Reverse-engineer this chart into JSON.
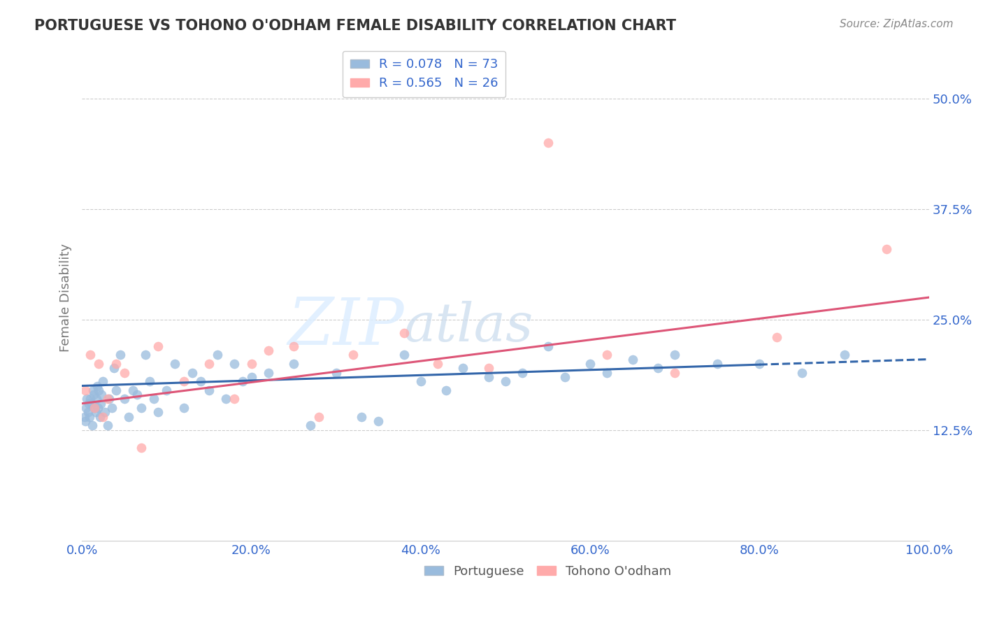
{
  "title": "PORTUGUESE VS TOHONO O'ODHAM FEMALE DISABILITY CORRELATION CHART",
  "source": "Source: ZipAtlas.com",
  "ylabel": "Female Disability",
  "xlabel": "",
  "xlim": [
    0,
    100
  ],
  "ylim": [
    0,
    55
  ],
  "yticks": [
    12.5,
    25.0,
    37.5,
    50.0
  ],
  "xticks": [
    0,
    20,
    40,
    60,
    80,
    100
  ],
  "xtick_labels": [
    "0.0%",
    "20.0%",
    "40.0%",
    "60.0%",
    "80.0%",
    "100.0%"
  ],
  "ytick_labels": [
    "12.5%",
    "25.0%",
    "37.5%",
    "50.0%"
  ],
  "portuguese_R": 0.078,
  "portuguese_N": 73,
  "tohono_R": 0.565,
  "tohono_N": 26,
  "blue_scatter_color": "#99BBDD",
  "pink_scatter_color": "#FFAAAA",
  "blue_line_color": "#3366AA",
  "pink_line_color": "#DD5577",
  "legend_color": "#3366CC",
  "background_color": "#FFFFFF",
  "grid_color": "#CCCCCC",
  "watermark_color": "#DDDDDD",
  "title_color": "#333333",
  "portuguese_x": [
    0.3,
    0.4,
    0.5,
    0.6,
    0.7,
    0.8,
    0.9,
    1.0,
    1.1,
    1.2,
    1.3,
    1.4,
    1.5,
    1.6,
    1.7,
    1.8,
    1.9,
    2.0,
    2.1,
    2.2,
    2.3,
    2.5,
    2.7,
    3.0,
    3.2,
    3.5,
    3.8,
    4.0,
    4.5,
    5.0,
    5.5,
    6.0,
    6.5,
    7.0,
    7.5,
    8.0,
    8.5,
    9.0,
    10.0,
    11.0,
    12.0,
    13.0,
    14.0,
    15.0,
    16.0,
    17.0,
    18.0,
    19.0,
    20.0,
    22.0,
    25.0,
    27.0,
    30.0,
    33.0,
    35.0,
    38.0,
    40.0,
    43.0,
    45.0,
    48.0,
    50.0,
    52.0,
    55.0,
    57.0,
    60.0,
    62.0,
    65.0,
    68.0,
    70.0,
    75.0,
    80.0,
    85.0,
    90.0
  ],
  "portuguese_y": [
    14.0,
    13.5,
    15.0,
    16.0,
    14.5,
    15.5,
    14.0,
    16.0,
    15.5,
    13.0,
    17.0,
    16.5,
    15.0,
    14.5,
    16.0,
    17.5,
    15.0,
    17.0,
    14.0,
    15.5,
    16.5,
    18.0,
    14.5,
    13.0,
    16.0,
    15.0,
    19.5,
    17.0,
    21.0,
    16.0,
    14.0,
    17.0,
    16.5,
    15.0,
    21.0,
    18.0,
    16.0,
    14.5,
    17.0,
    20.0,
    15.0,
    19.0,
    18.0,
    17.0,
    21.0,
    16.0,
    20.0,
    18.0,
    18.5,
    19.0,
    20.0,
    13.0,
    19.0,
    14.0,
    13.5,
    21.0,
    18.0,
    17.0,
    19.5,
    18.5,
    18.0,
    19.0,
    22.0,
    18.5,
    20.0,
    19.0,
    20.5,
    19.5,
    21.0,
    20.0,
    20.0,
    19.0,
    21.0
  ],
  "tohono_x": [
    0.4,
    1.0,
    1.5,
    2.0,
    2.5,
    3.0,
    4.0,
    5.0,
    7.0,
    9.0,
    12.0,
    15.0,
    18.0,
    20.0,
    22.0,
    25.0,
    28.0,
    32.0,
    38.0,
    42.0,
    48.0,
    55.0,
    62.0,
    70.0,
    82.0,
    95.0
  ],
  "tohono_y": [
    17.0,
    21.0,
    15.0,
    20.0,
    14.0,
    16.0,
    20.0,
    19.0,
    10.5,
    22.0,
    18.0,
    20.0,
    16.0,
    20.0,
    21.5,
    22.0,
    14.0,
    21.0,
    23.5,
    20.0,
    19.5,
    45.0,
    21.0,
    19.0,
    23.0,
    33.0
  ],
  "blue_line_x0": 0,
  "blue_line_y0": 17.5,
  "blue_line_x1": 100,
  "blue_line_y1": 20.5,
  "blue_dash_start": 80,
  "pink_line_x0": 0,
  "pink_line_y0": 15.5,
  "pink_line_x1": 100,
  "pink_line_y1": 27.5
}
